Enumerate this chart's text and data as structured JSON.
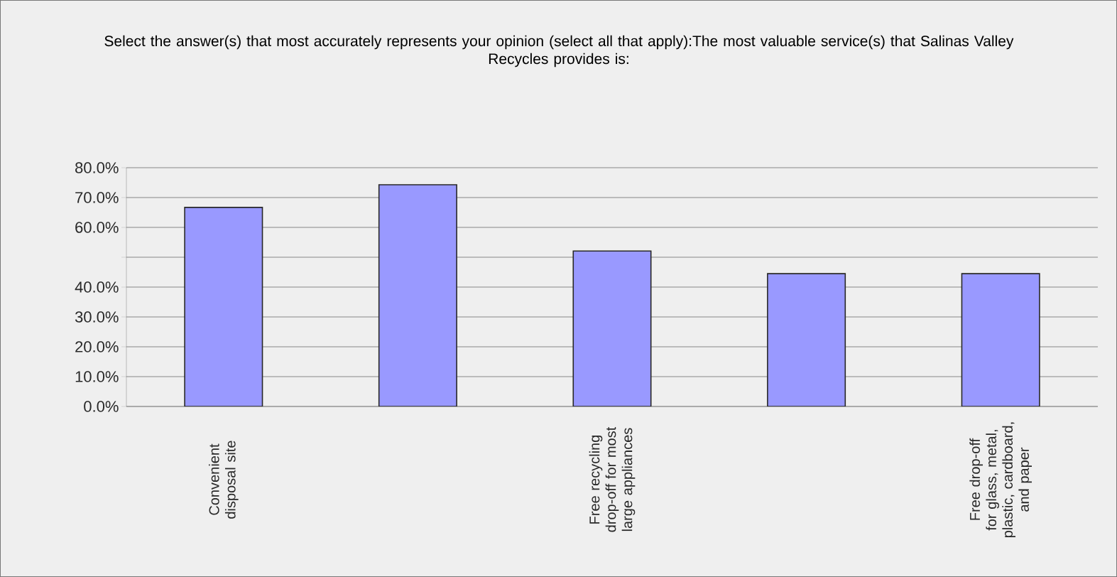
{
  "chart_data": {
    "type": "bar",
    "title": "Select the answer(s) that most accurately represents your opinion (select all that apply):The most valuable service(s) that Salinas Valley Recycles provides is:",
    "categories": [
      "Convenient disposal site",
      null,
      "Free recycling drop-off for most large appliances",
      null,
      "Free drop-off for glass, metal, plastic, cardboard, and paper"
    ],
    "values": [
      66.7,
      74.3,
      52.1,
      44.5,
      44.5
    ],
    "color": "#9999ff",
    "ylim": [
      0,
      80
    ],
    "yticks": [
      {
        "value": 0,
        "label": "0.0%"
      },
      {
        "value": 10,
        "label": "10.0%"
      },
      {
        "value": 20,
        "label": "20.0%"
      },
      {
        "value": 30,
        "label": "30.0%"
      },
      {
        "value": 40,
        "label": "40.0%"
      },
      {
        "value": 50,
        "label": null
      },
      {
        "value": 60,
        "label": "60.0%"
      },
      {
        "value": 70,
        "label": "70.0%"
      },
      {
        "value": 80,
        "label": "80.0%"
      }
    ],
    "grid": "y"
  }
}
